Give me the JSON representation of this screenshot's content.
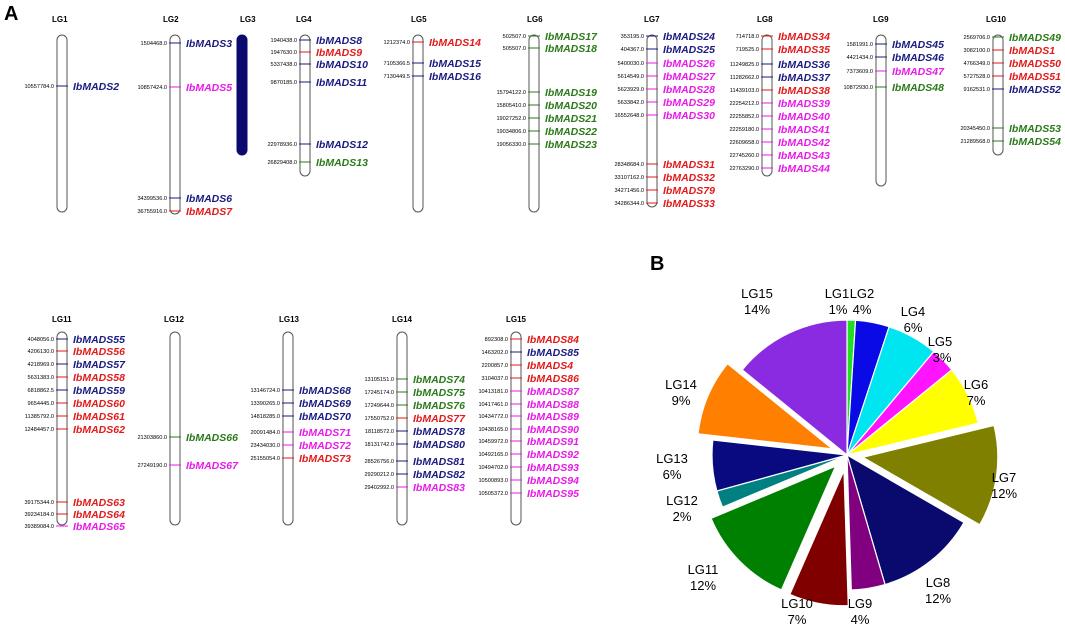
{
  "panel_letters": {
    "a": "A",
    "b": "B"
  },
  "colors": {
    "blue": "#1a1a80",
    "red": "#e21a1a",
    "green": "#2a7a1a",
    "magenta": "#e81ae8",
    "chrom_outline": "#555555",
    "chrom_fill": "#ffffff",
    "lg3_fill": "#0a0a6e"
  },
  "chromosomes": [
    {
      "lg": "LG1",
      "genes": [
        {
          "name": "IbMADS2",
          "pos": "10557784.0",
          "color": "blue"
        }
      ]
    },
    {
      "lg": "LG2",
      "genes": [
        {
          "name": "IbMADS3",
          "pos": "1504468.0",
          "color": "blue"
        },
        {
          "name": "IbMADS5",
          "pos": "10857424.0",
          "color": "magenta"
        },
        {
          "name": "IbMADS6",
          "pos": "34399536.0",
          "color": "blue"
        },
        {
          "name": "IbMADS7",
          "pos": "36755916.0",
          "color": "red"
        }
      ]
    },
    {
      "lg": "LG3",
      "genes": []
    },
    {
      "lg": "LG4",
      "genes": [
        {
          "name": "IbMADS8",
          "pos": "1940438.0",
          "color": "blue"
        },
        {
          "name": "IbMADS9",
          "pos": "1947630.0",
          "color": "red"
        },
        {
          "name": "IbMADS10",
          "pos": "5337438.0",
          "color": "blue"
        },
        {
          "name": "IbMADS11",
          "pos": "9870185.0",
          "color": "blue"
        },
        {
          "name": "IbMADS12",
          "pos": "22978936.0",
          "color": "blue"
        },
        {
          "name": "IbMADS13",
          "pos": "26829408.0",
          "color": "green"
        }
      ]
    },
    {
      "lg": "LG5",
      "genes": [
        {
          "name": "IbMADS14",
          "pos": "1212374.0",
          "color": "red"
        },
        {
          "name": "IbMADS15",
          "pos": "7105366.5",
          "color": "blue"
        },
        {
          "name": "IbMADS16",
          "pos": "7130449.5",
          "color": "blue"
        }
      ]
    },
    {
      "lg": "LG6",
      "genes": [
        {
          "name": "IbMADS17",
          "pos": "502507.0",
          "color": "green"
        },
        {
          "name": "IbMADS18",
          "pos": "505507.0",
          "color": "green"
        },
        {
          "name": "IbMADS19",
          "pos": "15794122.0",
          "color": "green"
        },
        {
          "name": "IbMADS20",
          "pos": "15805410.0",
          "color": "green"
        },
        {
          "name": "IbMADS21",
          "pos": "19027252.0",
          "color": "green"
        },
        {
          "name": "IbMADS22",
          "pos": "19034806.0",
          "color": "green"
        },
        {
          "name": "IbMADS23",
          "pos": "19056330.0",
          "color": "green"
        }
      ]
    },
    {
      "lg": "LG7",
      "genes": [
        {
          "name": "IbMADS24",
          "pos": "353195.0",
          "color": "blue"
        },
        {
          "name": "IbMADS25",
          "pos": "404367.0",
          "color": "blue"
        },
        {
          "name": "IbMADS26",
          "pos": "5400030.0",
          "color": "magenta"
        },
        {
          "name": "IbMADS27",
          "pos": "5614549.0",
          "color": "magenta"
        },
        {
          "name": "IbMADS28",
          "pos": "5623929.0",
          "color": "magenta"
        },
        {
          "name": "IbMADS29",
          "pos": "5633842.0",
          "color": "magenta"
        },
        {
          "name": "IbMADS30",
          "pos": "16552648.0",
          "color": "magenta"
        },
        {
          "name": "IbMADS31",
          "pos": "28348684.0",
          "color": "red"
        },
        {
          "name": "IbMADS32",
          "pos": "33107162.0",
          "color": "red"
        },
        {
          "name": "IbMADS79",
          "pos": "34271456.0",
          "color": "red"
        },
        {
          "name": "IbMADS33",
          "pos": "34286344.0",
          "color": "red"
        }
      ]
    },
    {
      "lg": "LG8",
      "genes": [
        {
          "name": "IbMADS34",
          "pos": "714718.0",
          "color": "red"
        },
        {
          "name": "IbMADS35",
          "pos": "719525.0",
          "color": "red"
        },
        {
          "name": "IbMADS36",
          "pos": "11249825.0",
          "color": "blue"
        },
        {
          "name": "IbMADS37",
          "pos": "11282662.0",
          "color": "blue"
        },
        {
          "name": "IbMADS38",
          "pos": "11439103.0",
          "color": "red"
        },
        {
          "name": "IbMADS39",
          "pos": "22254212.0",
          "color": "magenta"
        },
        {
          "name": "IbMADS40",
          "pos": "22255852.0",
          "color": "magenta"
        },
        {
          "name": "IbMADS41",
          "pos": "22259180.0",
          "color": "magenta"
        },
        {
          "name": "IbMADS42",
          "pos": "22609658.0",
          "color": "magenta"
        },
        {
          "name": "IbMADS43",
          "pos": "22745260.0",
          "color": "magenta"
        },
        {
          "name": "IbMADS44",
          "pos": "22763290.0",
          "color": "magenta"
        }
      ]
    },
    {
      "lg": "LG9",
      "genes": [
        {
          "name": "IbMADS45",
          "pos": "1581991.0",
          "color": "blue"
        },
        {
          "name": "IbMADS46",
          "pos": "4421434.0",
          "color": "blue"
        },
        {
          "name": "IbMADS47",
          "pos": "7373609.0",
          "color": "magenta"
        },
        {
          "name": "IbMADS48",
          "pos": "10872930.0",
          "color": "green"
        }
      ]
    },
    {
      "lg": "LG10",
      "genes": [
        {
          "name": "IbMADS49",
          "pos": "2569706.0",
          "color": "green"
        },
        {
          "name": "IbMADS1",
          "pos": "3082100.0",
          "color": "red"
        },
        {
          "name": "IbMADS50",
          "pos": "4766349.0",
          "color": "red"
        },
        {
          "name": "IbMADS51",
          "pos": "5727528.0",
          "color": "red"
        },
        {
          "name": "IbMADS52",
          "pos": "9162531.0",
          "color": "blue"
        },
        {
          "name": "IbMADS53",
          "pos": "20345450.0",
          "color": "green"
        },
        {
          "name": "IbMADS54",
          "pos": "21289568.0",
          "color": "green"
        }
      ]
    },
    {
      "lg": "LG11",
      "genes": [
        {
          "name": "IbMADS55",
          "pos": "4048056.0",
          "color": "blue"
        },
        {
          "name": "IbMADS56",
          "pos": "4206130.0",
          "color": "red"
        },
        {
          "name": "IbMADS57",
          "pos": "4218969.0",
          "color": "blue"
        },
        {
          "name": "IbMADS58",
          "pos": "5631383.0",
          "color": "red"
        },
        {
          "name": "IbMADS59",
          "pos": "6818862.5",
          "color": "blue"
        },
        {
          "name": "IbMADS60",
          "pos": "9654445.0",
          "color": "red"
        },
        {
          "name": "IbMADS61",
          "pos": "11385792.0",
          "color": "red"
        },
        {
          "name": "IbMADS62",
          "pos": "12484457.0",
          "color": "red"
        },
        {
          "name": "IbMADS63",
          "pos": "39175344.0",
          "color": "red"
        },
        {
          "name": "IbMADS64",
          "pos": "39234184.0",
          "color": "red"
        },
        {
          "name": "IbMADS65",
          "pos": "39389084.0",
          "color": "magenta"
        }
      ]
    },
    {
      "lg": "LG12",
      "genes": [
        {
          "name": "IbMADS66",
          "pos": "21303860.0",
          "color": "green"
        },
        {
          "name": "IbMADS67",
          "pos": "27249190.0",
          "color": "magenta"
        }
      ]
    },
    {
      "lg": "LG13",
      "genes": [
        {
          "name": "IbMADS68",
          "pos": "13146724.0",
          "color": "blue"
        },
        {
          "name": "IbMADS69",
          "pos": "13390265.0",
          "color": "blue"
        },
        {
          "name": "IbMADS70",
          "pos": "14818285.0",
          "color": "blue"
        },
        {
          "name": "IbMADS71",
          "pos": "20091484.0",
          "color": "magenta"
        },
        {
          "name": "IbMADS72",
          "pos": "23434030.0",
          "color": "magenta"
        },
        {
          "name": "IbMADS73",
          "pos": "25155054.0",
          "color": "red"
        }
      ]
    },
    {
      "lg": "LG14",
      "genes": [
        {
          "name": "IbMADS74",
          "pos": "13105151.0",
          "color": "green"
        },
        {
          "name": "IbMADS75",
          "pos": "17245174.0",
          "color": "green"
        },
        {
          "name": "IbMADS76",
          "pos": "17249644.0",
          "color": "green"
        },
        {
          "name": "IbMADS77",
          "pos": "17550752.0",
          "color": "red"
        },
        {
          "name": "IbMADS78",
          "pos": "18118572.0",
          "color": "blue"
        },
        {
          "name": "IbMADS80",
          "pos": "18131742.0",
          "color": "blue"
        },
        {
          "name": "IbMADS81",
          "pos": "28526756.0",
          "color": "blue"
        },
        {
          "name": "IbMADS82",
          "pos": "29290212.0",
          "color": "blue"
        },
        {
          "name": "IbMADS83",
          "pos": "29402992.0",
          "color": "magenta"
        }
      ]
    },
    {
      "lg": "LG15",
      "genes": [
        {
          "name": "IbMADS84",
          "pos": "892308.0",
          "color": "red"
        },
        {
          "name": "IbMADS85",
          "pos": "1463202.0",
          "color": "blue"
        },
        {
          "name": "IbMADS4",
          "pos": "2200857.0",
          "color": "red"
        },
        {
          "name": "IbMADS86",
          "pos": "3104037.0",
          "color": "red"
        },
        {
          "name": "IbMADS87",
          "pos": "10413181.0",
          "color": "magenta"
        },
        {
          "name": "IbMADS88",
          "pos": "10417461.0",
          "color": "magenta"
        },
        {
          "name": "IbMADS89",
          "pos": "10434772.0",
          "color": "magenta"
        },
        {
          "name": "IbMADS90",
          "pos": "10438165.0",
          "color": "magenta"
        },
        {
          "name": "IbMADS91",
          "pos": "10459972.0",
          "color": "magenta"
        },
        {
          "name": "IbMADS92",
          "pos": "10492165.0",
          "color": "magenta"
        },
        {
          "name": "IbMADS93",
          "pos": "10494702.0",
          "color": "magenta"
        },
        {
          "name": "IbMADS94",
          "pos": "10500893.0",
          "color": "magenta"
        },
        {
          "name": "IbMADS95",
          "pos": "10505372.0",
          "color": "magenta"
        }
      ]
    }
  ],
  "chart_data": {
    "type": "pie",
    "title": "",
    "categories": [
      "LG1",
      "LG2",
      "LG4",
      "LG5",
      "LG6",
      "LG7",
      "LG8",
      "LG9",
      "LG10",
      "LG11",
      "LG12",
      "LG13",
      "LG14",
      "LG15"
    ],
    "values": [
      1,
      4,
      6,
      3,
      7,
      12,
      12,
      4,
      7,
      12,
      2,
      6,
      9,
      14
    ],
    "labels": [
      "1%",
      "4%",
      "6%",
      "3%",
      "7%",
      "12%",
      "12%",
      "4%",
      "7%",
      "12%",
      "2%",
      "6%",
      "9%",
      "14%"
    ],
    "colors": [
      "#22dd22",
      "#0a0ae6",
      "#00e6f0",
      "#ff14ff",
      "#ffff00",
      "#808000",
      "#0a0a6e",
      "#800080",
      "#800000",
      "#008000",
      "#008080",
      "#0a0a80",
      "#ff8000",
      "#8a2be2"
    ],
    "exploded": [
      "LG7",
      "LG10",
      "LG11",
      "LG14"
    ]
  }
}
